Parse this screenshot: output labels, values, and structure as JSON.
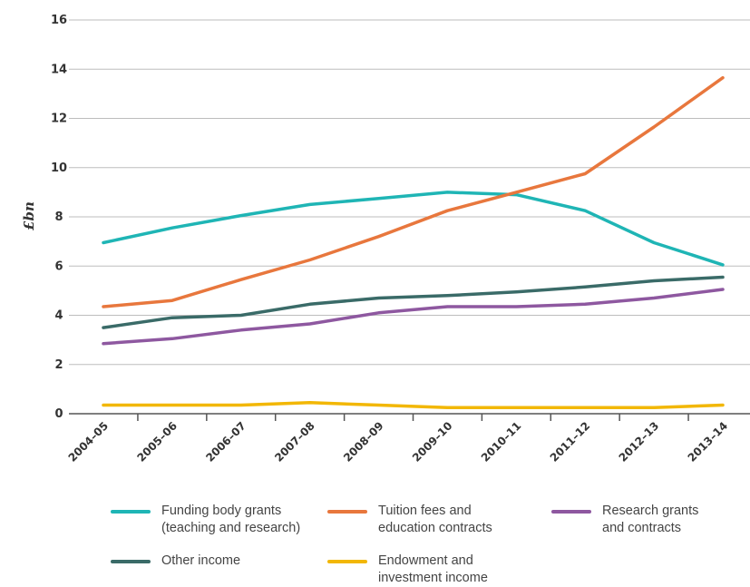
{
  "chart_data": {
    "type": "line",
    "title": "",
    "xlabel": "",
    "ylabel": "£bn",
    "ylim": [
      0,
      16
    ],
    "yticks": [
      "0",
      "2",
      "4",
      "6",
      "8",
      "10",
      "12",
      "14",
      "16"
    ],
    "categories": [
      "2004–05",
      "2005–06",
      "2006–07",
      "2007–08",
      "2008–09",
      "2009–10",
      "2010–11",
      "2011–12",
      "2012–13",
      "2013–14"
    ],
    "grid": "horizontal",
    "legend_position": "bottom",
    "series": [
      {
        "name": "Funding body grants\n(teaching and research)",
        "color": "#1fb5b5",
        "values": [
          6.95,
          7.55,
          8.05,
          8.5,
          8.75,
          9.0,
          8.9,
          8.25,
          6.95,
          6.05
        ]
      },
      {
        "name": "Tuition fees and\neducation contracts",
        "color": "#e8773d",
        "values": [
          4.35,
          4.6,
          5.45,
          6.25,
          7.2,
          8.25,
          9.0,
          9.75,
          11.65,
          13.65
        ]
      },
      {
        "name": "Research grants\nand contracts",
        "color": "#8e58a0",
        "values": [
          2.85,
          3.05,
          3.4,
          3.65,
          4.1,
          4.35,
          4.35,
          4.45,
          4.7,
          5.05
        ]
      },
      {
        "name": "Other income",
        "color": "#3a6b68",
        "values": [
          3.5,
          3.9,
          4.0,
          4.45,
          4.7,
          4.8,
          4.95,
          5.15,
          5.4,
          5.55
        ]
      },
      {
        "name": "Endowment and\ninvestment income",
        "color": "#f2b705",
        "values": [
          0.35,
          0.35,
          0.35,
          0.45,
          0.35,
          0.25,
          0.25,
          0.25,
          0.25,
          0.35
        ]
      }
    ]
  }
}
